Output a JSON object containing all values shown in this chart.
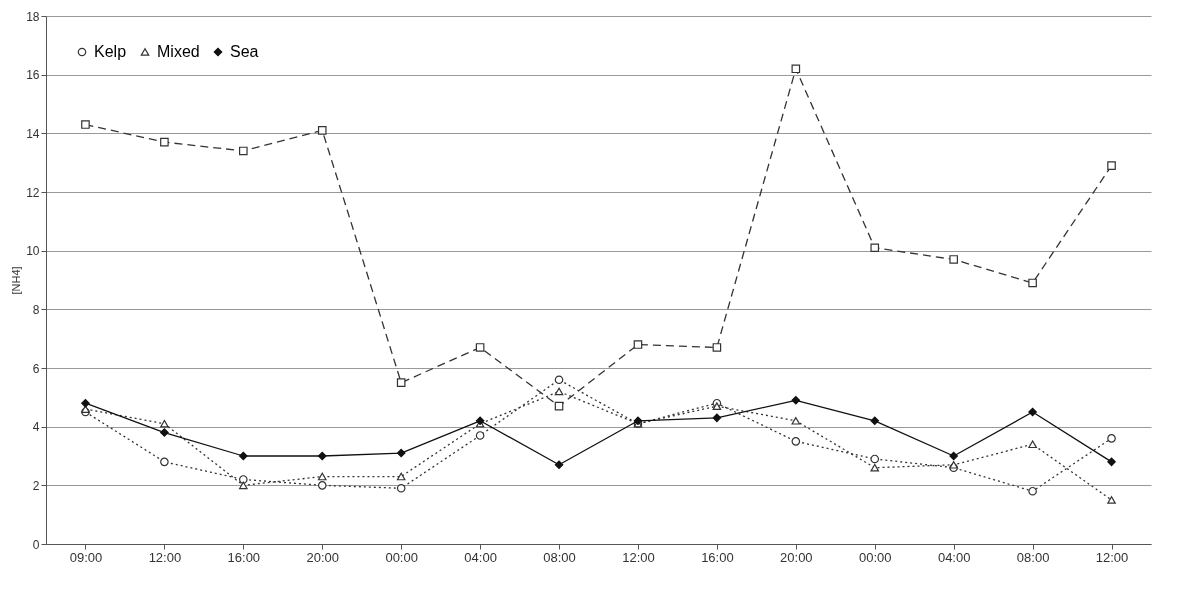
{
  "chart_data": {
    "type": "line",
    "ylabel": "[NH4]",
    "categories": [
      "09:00",
      "12:00",
      "16:00",
      "20:00",
      "00:00",
      "04:00",
      "08:00",
      "12:00",
      "16:00",
      "20:00",
      "00:00",
      "04:00",
      "08:00",
      "12:00"
    ],
    "series": [
      {
        "name": "Kelp",
        "color": "#333333",
        "marker": "circle",
        "line_style": "dotted",
        "values": [
          4.5,
          2.8,
          2.2,
          2.0,
          1.9,
          3.7,
          5.6,
          4.1,
          4.8,
          3.5,
          2.9,
          2.6,
          1.8,
          3.6
        ]
      },
      {
        "color": "#333333",
        "marker": "square",
        "line_style": "dashed",
        "values": [
          14.3,
          13.7,
          13.4,
          14.1,
          5.5,
          6.7,
          4.7,
          6.8,
          6.7,
          16.2,
          10.1,
          9.7,
          8.9,
          12.9
        ]
      },
      {
        "name": "Mixed",
        "color": "#333333",
        "marker": "triangle",
        "line_style": "dotted",
        "values": [
          4.6,
          4.1,
          2.0,
          2.3,
          2.3,
          4.1,
          5.2,
          4.1,
          4.7,
          4.2,
          2.6,
          2.7,
          3.4,
          1.5
        ]
      },
      {
        "name": "Sea",
        "color": "#111111",
        "marker": "diamond",
        "line_style": "solid",
        "values": [
          4.8,
          3.8,
          3.0,
          3.0,
          3.1,
          4.2,
          2.7,
          4.2,
          4.3,
          4.9,
          4.2,
          3.0,
          4.5,
          2.8
        ]
      }
    ],
    "ylim": [
      0,
      18
    ],
    "yticks": [
      0,
      2,
      4,
      6,
      8,
      10,
      12,
      14,
      16,
      18
    ],
    "grid": "y",
    "legend": "top left"
  }
}
